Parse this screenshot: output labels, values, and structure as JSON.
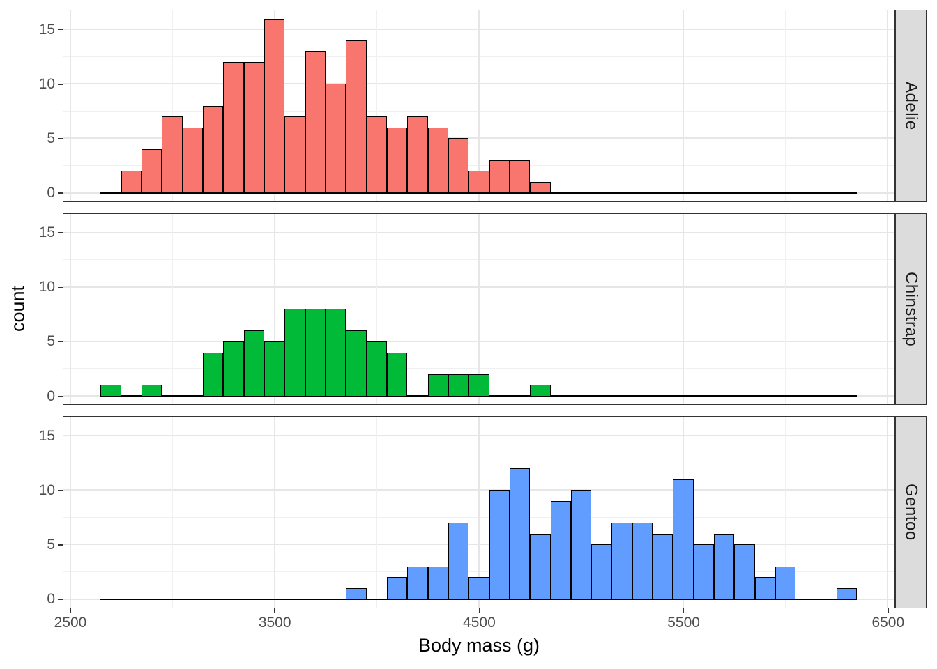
{
  "chart_data": {
    "type": "histogram",
    "title": "",
    "xlabel": "Body mass (g)",
    "ylabel": "count",
    "binwidth": 100,
    "bin_closed": "right",
    "grid": true,
    "legend": "none",
    "x_ticks": [
      2500,
      3500,
      4500,
      5500,
      6500
    ],
    "x_minor_ticks": [
      3000,
      4000,
      5000,
      6000
    ],
    "y_ticks": [
      0,
      5,
      10,
      15
    ],
    "y_minor_ticks": [
      2.5,
      7.5,
      12.5
    ],
    "xlim": [
      2462,
      6538
    ],
    "ylim": [
      -0.8,
      16.8
    ],
    "baseline_extent": [
      2650,
      6350
    ],
    "facet_variable": "species",
    "panel_border_color": "#333333",
    "strip_fill": "#dcdcdc",
    "facets": [
      {
        "label": "Adelie",
        "fill": "#F8766D",
        "outline": "#000000",
        "bins": [
          [
            2750,
            2
          ],
          [
            2850,
            4
          ],
          [
            2950,
            7
          ],
          [
            3050,
            6
          ],
          [
            3150,
            8
          ],
          [
            3250,
            12
          ],
          [
            3350,
            12
          ],
          [
            3450,
            16
          ],
          [
            3550,
            7
          ],
          [
            3650,
            13
          ],
          [
            3750,
            10
          ],
          [
            3850,
            14
          ],
          [
            3950,
            7
          ],
          [
            4050,
            6
          ],
          [
            4150,
            7
          ],
          [
            4250,
            6
          ],
          [
            4350,
            5
          ],
          [
            4450,
            2
          ],
          [
            4550,
            3
          ],
          [
            4650,
            3
          ],
          [
            4750,
            1
          ]
        ],
        "total": 151
      },
      {
        "label": "Chinstrap",
        "fill": "#00BA38",
        "outline": "#000000",
        "bins": [
          [
            2650,
            1
          ],
          [
            2850,
            1
          ],
          [
            3150,
            4
          ],
          [
            3250,
            5
          ],
          [
            3350,
            6
          ],
          [
            3450,
            5
          ],
          [
            3550,
            8
          ],
          [
            3650,
            8
          ],
          [
            3750,
            8
          ],
          [
            3850,
            6
          ],
          [
            3950,
            5
          ],
          [
            4050,
            4
          ],
          [
            4250,
            2
          ],
          [
            4350,
            2
          ],
          [
            4450,
            2
          ],
          [
            4750,
            1
          ]
        ],
        "total": 68
      },
      {
        "label": "Gentoo",
        "fill": "#619CFF",
        "outline": "#000000",
        "bins": [
          [
            3850,
            1
          ],
          [
            4050,
            2
          ],
          [
            4150,
            3
          ],
          [
            4250,
            3
          ],
          [
            4350,
            7
          ],
          [
            4450,
            2
          ],
          [
            4550,
            10
          ],
          [
            4650,
            12
          ],
          [
            4750,
            6
          ],
          [
            4850,
            9
          ],
          [
            4950,
            10
          ],
          [
            5050,
            5
          ],
          [
            5150,
            7
          ],
          [
            5250,
            7
          ],
          [
            5350,
            6
          ],
          [
            5450,
            11
          ],
          [
            5550,
            5
          ],
          [
            5650,
            6
          ],
          [
            5750,
            5
          ],
          [
            5850,
            2
          ],
          [
            5950,
            3
          ],
          [
            6250,
            1
          ]
        ],
        "total": 123
      }
    ]
  }
}
